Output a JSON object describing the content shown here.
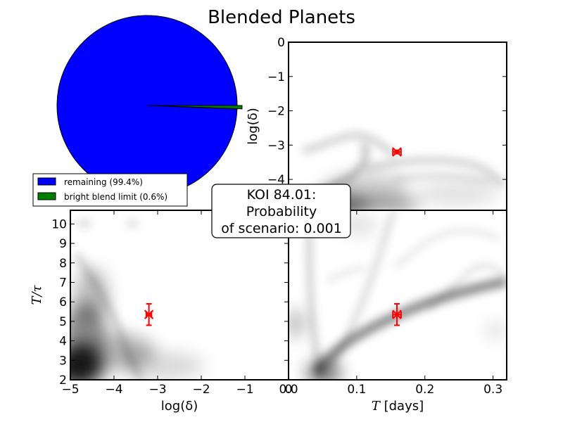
{
  "title": "Blended Planets",
  "annotation": [
    "KOI 84.01:",
    "Probability",
    "of scenario: 0.001"
  ],
  "chart_data": [
    {
      "type": "pie",
      "slices": [
        {
          "label": "remaining (99.4%)",
          "value": 99.4,
          "color": "#0000ff"
        },
        {
          "label": "bright blend limit (0.6%)",
          "value": 0.6,
          "color": "#008000"
        }
      ],
      "legend_position": "bottom-left"
    },
    {
      "type": "heatmap",
      "panel": "top-right",
      "xlim": [
        0,
        0.32
      ],
      "ylim": [
        -4.9,
        0
      ],
      "xlabel": "",
      "ylabel": "log(δ)",
      "xticks": [],
      "yticks": [
        "0",
        "−1",
        "−2",
        "−3",
        "−4"
      ],
      "ytick_values": [
        0,
        -1,
        -2,
        -3,
        -4
      ],
      "marker": {
        "x": 0.159,
        "y": -3.2,
        "xerr": 0.006,
        "yerr": 0.05,
        "color": "#ff0000"
      }
    },
    {
      "type": "heatmap",
      "panel": "bottom-left",
      "xlim": [
        -5,
        0
      ],
      "ylim": [
        2,
        10.7
      ],
      "xlabel": "log(δ)",
      "ylabel": "T/τ",
      "xticks": [
        "−5",
        "−4",
        "−3",
        "−2",
        "−1",
        "0"
      ],
      "xtick_values": [
        -5,
        -4,
        -3,
        -2,
        -1,
        0
      ],
      "yticks": [
        "2",
        "3",
        "4",
        "5",
        "6",
        "7",
        "8",
        "9",
        "10"
      ],
      "ytick_values": [
        2,
        3,
        4,
        5,
        6,
        7,
        8,
        9,
        10
      ],
      "marker": {
        "x": -3.2,
        "y": 5.35,
        "xerr": 0.06,
        "yerr": 0.55,
        "color": "#ff0000"
      }
    },
    {
      "type": "heatmap",
      "panel": "bottom-right",
      "xlim": [
        0,
        0.32
      ],
      "ylim": [
        2,
        10.7
      ],
      "xlabel": "T [days]",
      "ylabel": "",
      "xticks": [
        "0.0",
        "0.1",
        "0.2",
        "0.3"
      ],
      "xtick_values": [
        0,
        0.1,
        0.2,
        0.3
      ],
      "yticks": [],
      "marker": {
        "x": 0.159,
        "y": 5.35,
        "xerr": 0.006,
        "yerr": 0.55,
        "color": "#ff0000"
      }
    }
  ]
}
